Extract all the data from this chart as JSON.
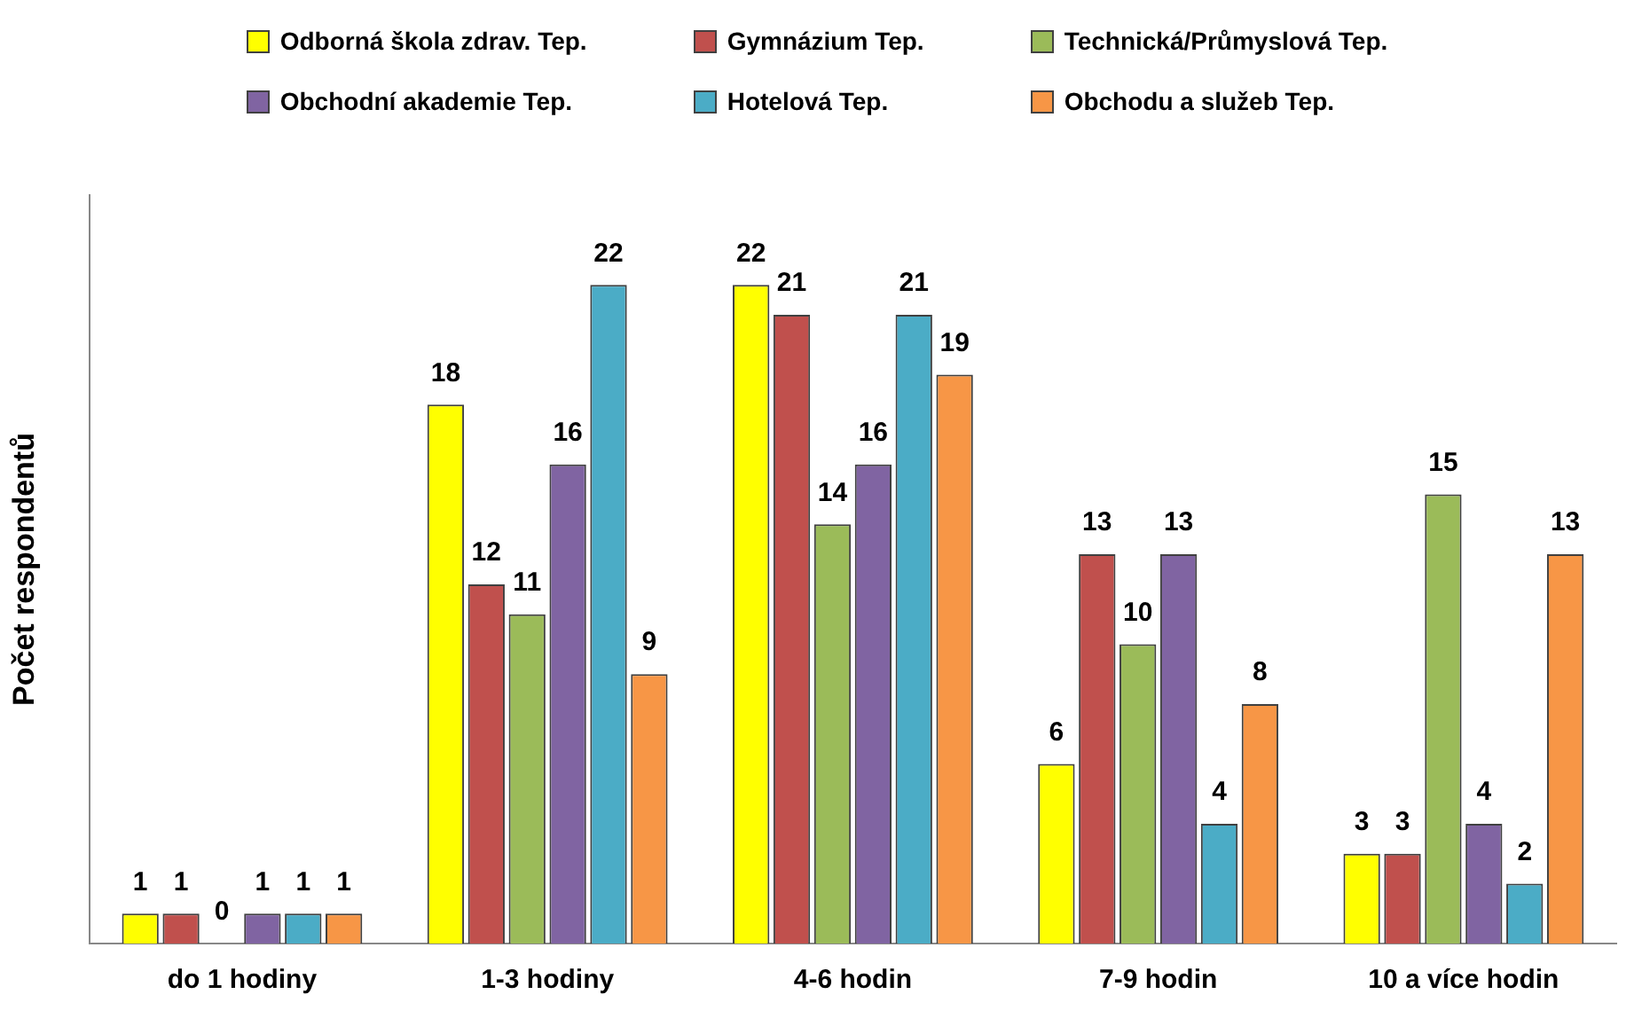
{
  "chart_data": {
    "type": "bar",
    "ylabel": "Počet respondentů",
    "categories": [
      "do 1 hodiny",
      "1-3 hodiny",
      "4-6 hodin",
      "7-9 hodin",
      "10 a více hodin"
    ],
    "series": [
      {
        "name": "Odborná škola zdrav. Tep.",
        "color": "#ffff00",
        "values": [
          1,
          18,
          22,
          6,
          3
        ]
      },
      {
        "name": "Gymnázium Tep.",
        "color": "#c0504d",
        "values": [
          1,
          12,
          21,
          13,
          3
        ]
      },
      {
        "name": "Technická/Průmyslová Tep.",
        "color": "#9bbb59",
        "values": [
          0,
          11,
          14,
          10,
          15
        ]
      },
      {
        "name": "Obchodní akademie Tep.",
        "color": "#8064a2",
        "values": [
          1,
          16,
          16,
          13,
          4
        ]
      },
      {
        "name": "Hotelová Tep.",
        "color": "#4bacc6",
        "values": [
          1,
          22,
          21,
          4,
          2
        ]
      },
      {
        "name": "Obchodu a služeb Tep.",
        "color": "#f79646",
        "values": [
          1,
          9,
          19,
          8,
          13
        ]
      }
    ],
    "data_labels": true,
    "legend": "top",
    "grid": false
  }
}
